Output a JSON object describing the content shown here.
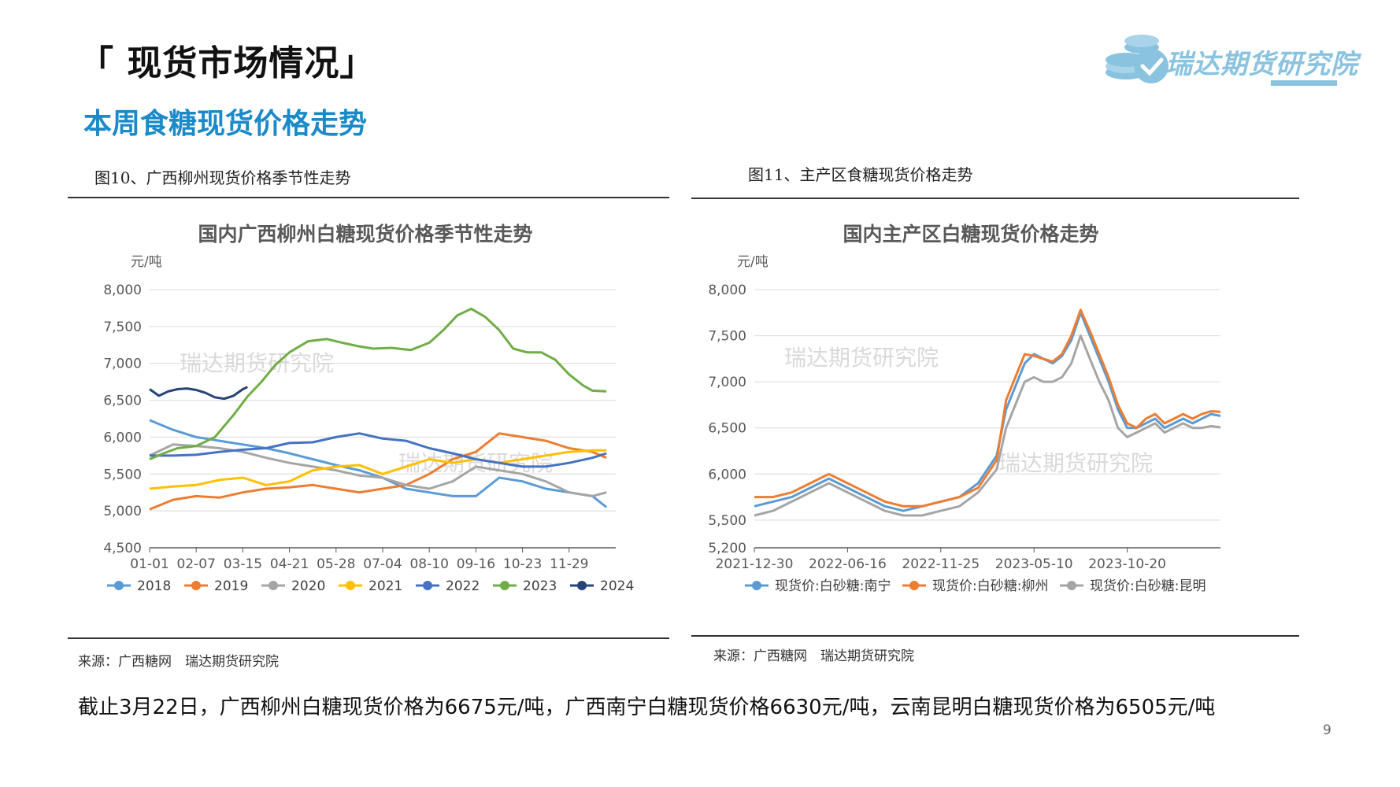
{
  "slide": {
    "title": "「 现货市场情况」",
    "subtitle": "本周食糖现货价格走势",
    "logo_text": "瑞达期货研究院",
    "summary": "截止3月22日，广西柳州白糖现货价格为6675元/吨，广西南宁白糖现货价格6630元/吨，云南昆明白糖现货价格为6505元/吨",
    "page_number": "9",
    "colors": {
      "title": "#111111",
      "subtitle": "#1a8ac8",
      "logo": "#8ac3df"
    }
  },
  "figures": [
    {
      "caption": "图10、广西柳州现货价格季节性走势",
      "source": "来源：广西糖网　瑞达期货研究院",
      "watermarks": [
        "瑞达期货研究院",
        "瑞达期货研究院"
      ]
    },
    {
      "caption": "图11、主产区食糖现货价格走势",
      "source": "来源：广西糖网　瑞达期货研究院",
      "watermarks": [
        "瑞达期货研究院",
        "瑞达期货研究院"
      ]
    }
  ],
  "chart_data": [
    {
      "type": "line",
      "title": "国内广西柳州白糖现货价格季节性走势",
      "ylabel": "元/吨",
      "ylim": [
        4500,
        8000
      ],
      "yticks": [
        4500,
        5000,
        5500,
        6000,
        6500,
        7000,
        7500,
        8000
      ],
      "ytick_labels": [
        "4,500",
        "5,000",
        "5,500",
        "6,000",
        "6,500",
        "7,000",
        "7,500",
        "8,000"
      ],
      "x_domain": [
        0,
        100
      ],
      "xticks": [
        0,
        10,
        20,
        30,
        40,
        50,
        60,
        70,
        80,
        90
      ],
      "xtick_labels": [
        "01-01",
        "02-07",
        "03-15",
        "04-21",
        "05-28",
        "07-04",
        "08-10",
        "09-16",
        "10-23",
        "11-29"
      ],
      "legend_position": "bottom",
      "grid": true,
      "series": [
        {
          "name": "2018",
          "color": "#5b9bd5",
          "x": [
            0,
            5,
            10,
            15,
            20,
            25,
            30,
            35,
            40,
            45,
            50,
            55,
            60,
            65,
            70,
            75,
            80,
            85,
            90,
            95,
            98
          ],
          "y": [
            6230,
            6100,
            6000,
            5950,
            5900,
            5850,
            5780,
            5700,
            5620,
            5550,
            5450,
            5300,
            5250,
            5200,
            5200,
            5450,
            5400,
            5300,
            5250,
            5200,
            5050
          ]
        },
        {
          "name": "2019",
          "color": "#ed7d31",
          "x": [
            0,
            5,
            10,
            15,
            20,
            25,
            30,
            35,
            40,
            45,
            50,
            55,
            60,
            65,
            70,
            75,
            80,
            85,
            90,
            95,
            98
          ],
          "y": [
            5020,
            5150,
            5200,
            5180,
            5250,
            5300,
            5320,
            5350,
            5300,
            5250,
            5300,
            5350,
            5500,
            5700,
            5800,
            6050,
            6000,
            5950,
            5850,
            5800,
            5720
          ]
        },
        {
          "name": "2020",
          "color": "#a5a5a5",
          "x": [
            0,
            5,
            10,
            15,
            20,
            25,
            30,
            35,
            40,
            45,
            50,
            55,
            60,
            65,
            70,
            75,
            80,
            85,
            90,
            95,
            98
          ],
          "y": [
            5750,
            5900,
            5880,
            5850,
            5800,
            5720,
            5650,
            5600,
            5550,
            5480,
            5450,
            5350,
            5300,
            5400,
            5600,
            5550,
            5500,
            5400,
            5250,
            5200,
            5250
          ]
        },
        {
          "name": "2021",
          "color": "#ffc000",
          "x": [
            0,
            5,
            10,
            15,
            20,
            25,
            30,
            35,
            40,
            45,
            50,
            55,
            60,
            65,
            70,
            75,
            80,
            85,
            90,
            95,
            98
          ],
          "y": [
            5300,
            5330,
            5350,
            5420,
            5450,
            5350,
            5400,
            5550,
            5600,
            5620,
            5500,
            5600,
            5700,
            5650,
            5700,
            5650,
            5700,
            5750,
            5800,
            5820,
            5820
          ]
        },
        {
          "name": "2022",
          "color": "#4472c4",
          "x": [
            0,
            5,
            10,
            15,
            20,
            25,
            30,
            35,
            40,
            45,
            50,
            55,
            60,
            65,
            70,
            75,
            80,
            85,
            90,
            95,
            98
          ],
          "y": [
            5750,
            5750,
            5760,
            5800,
            5830,
            5850,
            5920,
            5930,
            6000,
            6050,
            5980,
            5950,
            5850,
            5780,
            5700,
            5650,
            5600,
            5600,
            5650,
            5720,
            5780
          ]
        },
        {
          "name": "2023",
          "color": "#70ad47",
          "x": [
            0,
            3,
            6,
            10,
            14,
            18,
            21,
            24,
            27,
            30,
            34,
            38,
            42,
            45,
            48,
            52,
            56,
            60,
            63,
            66,
            69,
            72,
            75,
            78,
            81,
            84,
            87,
            90,
            93,
            95,
            98
          ],
          "y": [
            5700,
            5780,
            5850,
            5880,
            6000,
            6300,
            6550,
            6750,
            6980,
            7150,
            7300,
            7330,
            7270,
            7230,
            7200,
            7210,
            7180,
            7280,
            7450,
            7650,
            7740,
            7630,
            7450,
            7200,
            7150,
            7150,
            7050,
            6850,
            6700,
            6630,
            6620
          ]
        },
        {
          "name": "2024",
          "color": "#264478",
          "x": [
            0,
            2,
            4,
            6,
            8,
            10,
            12,
            14,
            16,
            18,
            20,
            21
          ],
          "y": [
            6650,
            6560,
            6620,
            6650,
            6660,
            6640,
            6600,
            6540,
            6520,
            6560,
            6650,
            6680
          ]
        }
      ]
    },
    {
      "type": "line",
      "title": "国内主产区白糖现货价格走势",
      "ylabel": "元/吨",
      "ylim": [
        5200,
        8000
      ],
      "yticks": [
        5200,
        5500,
        6000,
        6500,
        7000,
        7500,
        8000
      ],
      "ytick_labels": [
        "5,200",
        "5,500",
        "6,000",
        "6,500",
        "7,000",
        "7,500",
        "8,000"
      ],
      "x_domain": [
        0,
        100
      ],
      "xticks": [
        0,
        20,
        40,
        60,
        80
      ],
      "xtick_labels": [
        "2021-12-30",
        "2022-06-16",
        "2022-11-25",
        "2023-05-10",
        "2023-10-20"
      ],
      "legend_position": "bottom",
      "grid": true,
      "series": [
        {
          "name": "现货价:白砂糖:南宁",
          "color": "#5b9bd5",
          "x": [
            0,
            4,
            8,
            12,
            16,
            20,
            24,
            28,
            32,
            36,
            40,
            44,
            48,
            52,
            54,
            56,
            58,
            60,
            62,
            64,
            66,
            68,
            70,
            72,
            74,
            76,
            78,
            80,
            82,
            84,
            86,
            88,
            90,
            92,
            94,
            96,
            98,
            100
          ],
          "y": [
            5650,
            5700,
            5750,
            5850,
            5950,
            5850,
            5750,
            5650,
            5600,
            5650,
            5700,
            5750,
            5900,
            6200,
            6700,
            6950,
            7200,
            7300,
            7250,
            7200,
            7280,
            7450,
            7750,
            7500,
            7250,
            7000,
            6700,
            6500,
            6500,
            6550,
            6600,
            6500,
            6550,
            6600,
            6550,
            6600,
            6650,
            6630
          ]
        },
        {
          "name": "现货价:白砂糖:柳州",
          "color": "#ed7d31",
          "x": [
            0,
            4,
            8,
            12,
            16,
            20,
            24,
            28,
            32,
            36,
            40,
            44,
            48,
            52,
            54,
            56,
            58,
            60,
            62,
            64,
            66,
            68,
            70,
            72,
            74,
            76,
            78,
            80,
            82,
            84,
            86,
            88,
            90,
            92,
            94,
            96,
            98,
            100
          ],
          "y": [
            5750,
            5750,
            5800,
            5900,
            6000,
            5900,
            5800,
            5700,
            5650,
            5650,
            5700,
            5750,
            5850,
            6150,
            6800,
            7050,
            7300,
            7280,
            7250,
            7220,
            7300,
            7500,
            7780,
            7550,
            7300,
            7050,
            6750,
            6550,
            6500,
            6600,
            6650,
            6550,
            6600,
            6650,
            6600,
            6650,
            6680,
            6675
          ]
        },
        {
          "name": "现货价:白砂糖:昆明",
          "color": "#a5a5a5",
          "x": [
            0,
            4,
            8,
            12,
            16,
            20,
            24,
            28,
            32,
            36,
            40,
            44,
            48,
            52,
            54,
            56,
            58,
            60,
            62,
            64,
            66,
            68,
            70,
            72,
            74,
            76,
            78,
            80,
            82,
            84,
            86,
            88,
            90,
            92,
            94,
            96,
            98,
            100
          ],
          "y": [
            5550,
            5600,
            5700,
            5800,
            5900,
            5800,
            5700,
            5600,
            5550,
            5550,
            5600,
            5650,
            5800,
            6050,
            6500,
            6750,
            7000,
            7050,
            7000,
            7000,
            7050,
            7200,
            7500,
            7250,
            7000,
            6800,
            6500,
            6400,
            6450,
            6500,
            6550,
            6450,
            6500,
            6550,
            6500,
            6500,
            6520,
            6505
          ]
        }
      ]
    }
  ]
}
